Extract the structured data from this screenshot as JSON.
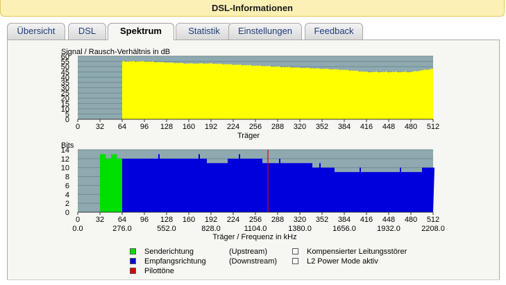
{
  "window": {
    "title": "DSL-Informationen"
  },
  "tabs": [
    {
      "label": "Übersicht",
      "active": false
    },
    {
      "label": "DSL",
      "active": false
    },
    {
      "label": "Spektrum",
      "active": true
    },
    {
      "label": "Statistik",
      "active": false
    },
    {
      "label": "Einstellungen",
      "active": false
    },
    {
      "label": "Feedback",
      "active": false
    }
  ],
  "colors": {
    "snr_fill": "#ffff00",
    "upstream": "#00e000",
    "downstream": "#0000dd",
    "pilot": "#dd0000",
    "plot_bg": "#8fa9b0"
  },
  "chart_data": [
    {
      "type": "area",
      "title": "Signal / Rausch-Verhältnis in dB",
      "xlabel": "Träger",
      "xlim": [
        0,
        512
      ],
      "ylim": [
        0,
        60
      ],
      "x_ticks": [
        "0",
        "32",
        "64",
        "96",
        "128",
        "160",
        "192",
        "224",
        "256",
        "288",
        "320",
        "352",
        "384",
        "416",
        "448",
        "480",
        "512"
      ],
      "y_ticks": [
        "0",
        "5",
        "10",
        "15",
        "20",
        "25",
        "30",
        "35",
        "40",
        "45",
        "50",
        "55",
        "60"
      ],
      "grid": true,
      "series": [
        {
          "x": [
            64,
            96,
            128,
            160,
            192,
            224,
            256,
            288,
            320,
            352,
            384,
            416,
            448,
            480,
            512
          ],
          "values": [
            55,
            55,
            54,
            53,
            53,
            52,
            51,
            50,
            49,
            48,
            47,
            45,
            45,
            45,
            48
          ]
        }
      ]
    },
    {
      "type": "bar",
      "title": "Bits",
      "xlabel": "Träger / Frequenz in kHz",
      "xlim": [
        0,
        512
      ],
      "ylim": [
        0,
        14
      ],
      "x_ticks": [
        "0",
        "32",
        "64",
        "96",
        "128",
        "160",
        "192",
        "224",
        "256",
        "288",
        "320",
        "352",
        "384",
        "416",
        "448",
        "480",
        "512"
      ],
      "x_ticks_khz": [
        "0.0",
        "276.0",
        "552.0",
        "828.0",
        "1104.0",
        "1380.0",
        "1656.0",
        "1932.0",
        "2208.0"
      ],
      "y_ticks": [
        "0",
        "2",
        "4",
        "6",
        "8",
        "10",
        "12",
        "14"
      ],
      "grid": true,
      "pilot_tone_carrier": 274,
      "series": [
        {
          "name": "Senderichtung",
          "x_range": [
            32,
            64
          ],
          "values": [
            13,
            12,
            13,
            12
          ]
        },
        {
          "name": "Empfangsrichtung",
          "x": [
            64,
            128,
            176,
            192,
            240,
            288,
            320,
            352,
            384,
            416,
            448,
            480,
            512
          ],
          "values": [
            12,
            12,
            12,
            11,
            12,
            11,
            11,
            10,
            9,
            9,
            9,
            9,
            10
          ]
        }
      ]
    }
  ],
  "legend": {
    "upstream_label": "Senderichtung",
    "upstream_dir": "(Upstream)",
    "downstream_label": "Empfangsrichtung",
    "downstream_dir": "(Downstream)",
    "pilot_label": "Pilottöne",
    "compensated_label": "Kompensierter Leitungsstörer",
    "l2_label": "L2 Power Mode aktiv"
  }
}
